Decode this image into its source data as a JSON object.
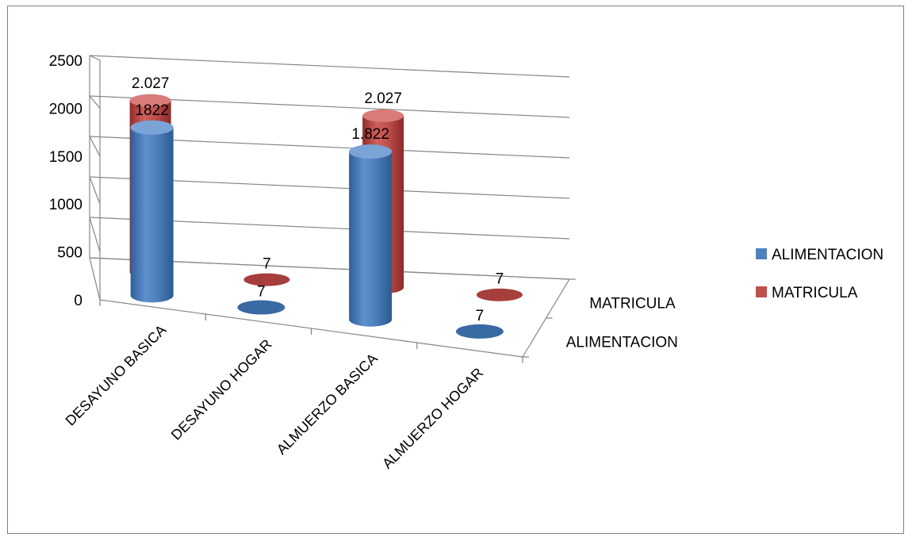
{
  "chart_data": {
    "type": "bar",
    "style": "3d-cylinder",
    "categories": [
      "DESAYUNO BASICA",
      "DESAYUNO HOGAR",
      "ALMUERZO BASICA",
      "ALMUERZO HOGAR"
    ],
    "series": [
      {
        "name": "ALIMENTACION",
        "values": [
          1822,
          7,
          1822,
          7
        ],
        "labels": [
          "1822",
          "7",
          "1.822",
          "7"
        ],
        "color": "#4f81bd"
      },
      {
        "name": "MATRICULA",
        "values": [
          2027,
          7,
          2027,
          7
        ],
        "labels": [
          "2.027",
          "7",
          "2.027",
          "7"
        ],
        "color": "#c0504d"
      }
    ],
    "depth_labels": [
      "MATRICULA",
      "ALIMENTACION"
    ],
    "y_ticks": [
      "0",
      "500",
      "1000",
      "1500",
      "2000",
      "2500"
    ],
    "ylim": [
      0,
      2500
    ],
    "grid": true,
    "legend_position": "right"
  }
}
